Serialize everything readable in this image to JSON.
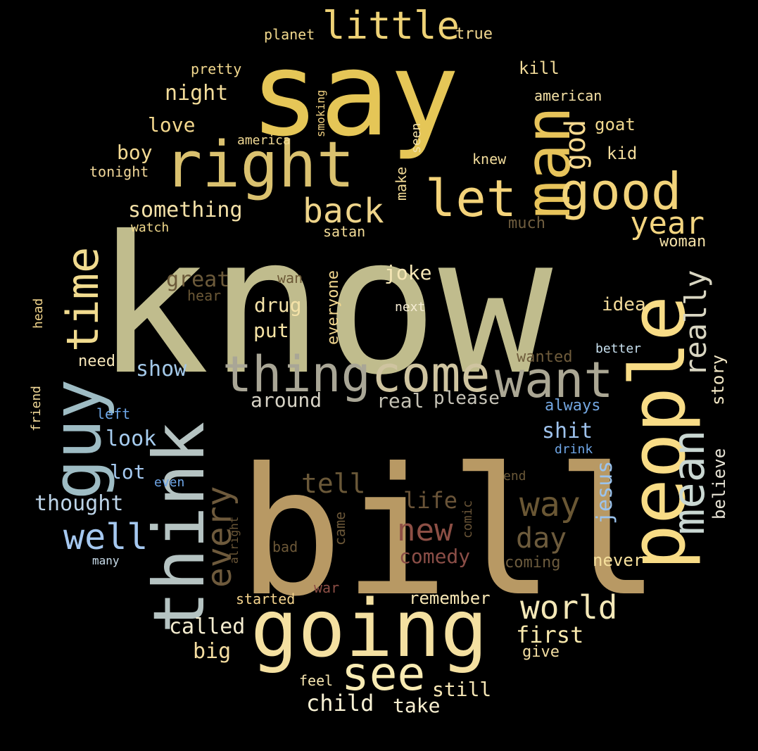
{
  "words": [
    {
      "text": "know",
      "color": "#C0BC8D"
    },
    {
      "text": "bill",
      "color": "#B89964"
    },
    {
      "text": "say",
      "color": "#E5C657"
    },
    {
      "text": "people",
      "color": "#F8DC86"
    },
    {
      "text": "think",
      "color": "#B5C3C2"
    },
    {
      "text": "going",
      "color": "#F4E0A1"
    },
    {
      "text": "guy",
      "color": "#9EBCC4"
    },
    {
      "text": "right",
      "color": "#DAC16F"
    },
    {
      "text": "man",
      "color": "#E7C35A"
    },
    {
      "text": "thing",
      "color": "#A9A696"
    },
    {
      "text": "come",
      "color": "#CFC4A0"
    },
    {
      "text": "want",
      "color": "#ABA794"
    },
    {
      "text": "mean",
      "color": "#C9D7D2"
    },
    {
      "text": "good",
      "color": "#F2D37A"
    },
    {
      "text": "time",
      "color": "#F1DB8F"
    },
    {
      "text": "let",
      "color": "#F4D37A"
    },
    {
      "text": "see",
      "color": "#F8EBB3"
    },
    {
      "text": "little",
      "color": "#EED276"
    },
    {
      "text": "back",
      "color": "#EED48A"
    },
    {
      "text": "well",
      "color": "#A5C8F0"
    },
    {
      "text": "world",
      "color": "#F4E8B8"
    },
    {
      "text": "every",
      "color": "#6E5A3C"
    },
    {
      "text": "way",
      "color": "#6A5734"
    },
    {
      "text": "new",
      "color": "#8D4F45"
    },
    {
      "text": "year",
      "color": "#F3D580"
    },
    {
      "text": "really",
      "color": "#D9D6C2"
    },
    {
      "text": "day",
      "color": "#6D5B3C"
    },
    {
      "text": "tell",
      "color": "#6A5838"
    },
    {
      "text": "god",
      "color": "#F6D98F"
    },
    {
      "text": "something",
      "color": "#F4E1A8"
    },
    {
      "text": "thought",
      "color": "#BDD4E8"
    },
    {
      "text": "life",
      "color": "#6A5438"
    },
    {
      "text": "first",
      "color": "#F8E8AC"
    },
    {
      "text": "child",
      "color": "#F8F1D4"
    },
    {
      "text": "called",
      "color": "#F5EDD0"
    },
    {
      "text": "night",
      "color": "#F3DC9A"
    },
    {
      "text": "look",
      "color": "#A7CDF0"
    },
    {
      "text": "show",
      "color": "#A3C8E8"
    },
    {
      "text": "shit",
      "color": "#9EC2EC"
    },
    {
      "text": "great",
      "color": "#6C5A3A"
    },
    {
      "text": "love",
      "color": "#F4D88E"
    },
    {
      "text": "around",
      "color": "#D7D3C6"
    },
    {
      "text": "jesus",
      "color": "#9BC3EE"
    },
    {
      "text": "comedy",
      "color": "#8B4E47"
    },
    {
      "text": "lot",
      "color": "#A6CAF1"
    },
    {
      "text": "joke",
      "color": "#F6E7B6"
    },
    {
      "text": "drug",
      "color": "#F4E2A8"
    },
    {
      "text": "put",
      "color": "#F6E3A4"
    },
    {
      "text": "big",
      "color": "#F5DDA0"
    },
    {
      "text": "idea",
      "color": "#F2DA9A"
    },
    {
      "text": "boy",
      "color": "#F4DA93"
    },
    {
      "text": "real",
      "color": "#C5C2B5"
    },
    {
      "text": "please",
      "color": "#C6C3B7"
    },
    {
      "text": "remember",
      "color": "#F6E6B4"
    },
    {
      "text": "take",
      "color": "#F8EFD0"
    },
    {
      "text": "still",
      "color": "#F7E7B6"
    },
    {
      "text": "believe",
      "color": "#E9E5D7"
    },
    {
      "text": "story",
      "color": "#F2E7C5"
    },
    {
      "text": "never",
      "color": "#F6E09C"
    },
    {
      "text": "everyone",
      "color": "#F1D68E"
    },
    {
      "text": "kill",
      "color": "#F1DA99"
    },
    {
      "text": "goat",
      "color": "#F1D98F"
    },
    {
      "text": "kid",
      "color": "#F2DC9C"
    },
    {
      "text": "coming",
      "color": "#6C5B3D"
    },
    {
      "text": "need",
      "color": "#F6E6B9"
    },
    {
      "text": "wanted",
      "color": "#6F5C3C"
    },
    {
      "text": "always",
      "color": "#74A7E1"
    },
    {
      "text": "much",
      "color": "#6F5D3F"
    },
    {
      "text": "woman",
      "color": "#F3E0A7"
    },
    {
      "text": "started",
      "color": "#F5D48D"
    },
    {
      "text": "feel",
      "color": "#F8E7B1"
    },
    {
      "text": "give",
      "color": "#F4DFA3"
    },
    {
      "text": "true",
      "color": "#F2D890"
    },
    {
      "text": "planet",
      "color": "#F2D98D"
    },
    {
      "text": "pretty",
      "color": "#F2D88E"
    },
    {
      "text": "american",
      "color": "#F6E2A6"
    },
    {
      "text": "make",
      "color": "#F2DA95"
    },
    {
      "text": "seen",
      "color": "#F4E2A7"
    },
    {
      "text": "smoking",
      "color": "#EFCF80"
    },
    {
      "text": "america",
      "color": "#F1D994"
    },
    {
      "text": "tonight",
      "color": "#F2D89A"
    },
    {
      "text": "knew",
      "color": "#F3DD9C"
    },
    {
      "text": "satan",
      "color": "#F3DC97"
    },
    {
      "text": "watch",
      "color": "#F1D98C"
    },
    {
      "text": "wan",
      "color": "#6B5836"
    },
    {
      "text": "hear",
      "color": "#6B5836"
    },
    {
      "text": "next",
      "color": "#F6EDD4"
    },
    {
      "text": "head",
      "color": "#F2D58C"
    },
    {
      "text": "better",
      "color": "#C8E0EF"
    },
    {
      "text": "friend",
      "color": "#F2DA99"
    },
    {
      "text": "left",
      "color": "#6EA7E8"
    },
    {
      "text": "drink",
      "color": "#6FA6E6"
    },
    {
      "text": "even",
      "color": "#6FA6E7"
    },
    {
      "text": "end",
      "color": "#6A5838"
    },
    {
      "text": "many",
      "color": "#C9DDEB"
    },
    {
      "text": "came",
      "color": "#6A5637"
    },
    {
      "text": "comic",
      "color": "#6A5537"
    },
    {
      "text": "alright",
      "color": "#6A5637"
    },
    {
      "text": "bad",
      "color": "#6B5737"
    },
    {
      "text": "war",
      "color": "#8C4E45"
    }
  ]
}
